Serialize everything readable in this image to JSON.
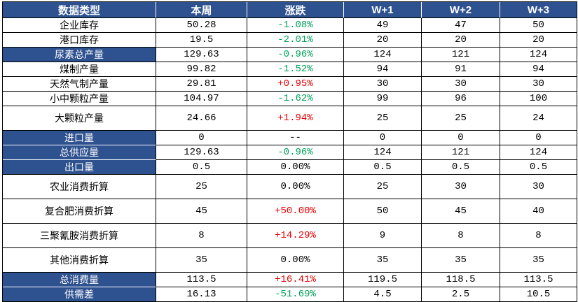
{
  "colors": {
    "header_bg": "#2E518F",
    "highlight_label_bg": "#2E518F",
    "positive_change": "#E60000",
    "negative_change": "#00A05A",
    "neutral_change": "#000000",
    "grid_border": "#000000",
    "blue_cell_separator": "#FFFFFF",
    "body_bg": "#FFFFFF"
  },
  "table": {
    "columns": [
      {
        "label": "数据类型"
      },
      {
        "label": "本周"
      },
      {
        "label": "涨跌"
      },
      {
        "label": "W+1"
      },
      {
        "label": "W+2"
      },
      {
        "label": "W+3"
      }
    ],
    "rows": [
      {
        "label": "企业库存",
        "week": "50.28",
        "change": "-1.08%",
        "change_dir": "down",
        "w1": "49",
        "w2": "47",
        "w3": "50"
      },
      {
        "label": "港口库存",
        "week": "19.5",
        "change": "-2.01%",
        "change_dir": "down",
        "w1": "20",
        "w2": "20",
        "w3": "20"
      },
      {
        "label": "尿素总产量",
        "week": "129.63",
        "change": "-0.96%",
        "change_dir": "down",
        "w1": "124",
        "w2": "121",
        "w3": "124"
      },
      {
        "label": "煤制产量",
        "week": "99.82",
        "change": "-1.52%",
        "change_dir": "down",
        "w1": "94",
        "w2": "91",
        "w3": "94"
      },
      {
        "label": "天然气制产量",
        "week": "29.81",
        "change": "+0.95%",
        "change_dir": "up",
        "w1": "30",
        "w2": "30",
        "w3": "30"
      },
      {
        "label": "小中颗粒产量",
        "week": "104.97",
        "change": "-1.62%",
        "change_dir": "down",
        "w1": "99",
        "w2": "96",
        "w3": "100"
      },
      {
        "label": "大颗粒产量",
        "week": "24.66",
        "change": "+1.94%",
        "change_dir": "up",
        "w1": "25",
        "w2": "25",
        "w3": "24"
      },
      {
        "label": "进口量",
        "week": "0",
        "change": "--",
        "change_dir": "flat",
        "w1": "0",
        "w2": "0",
        "w3": "0"
      },
      {
        "label": "总供应量",
        "week": "129.63",
        "change": "-0.96%",
        "change_dir": "down",
        "w1": "124",
        "w2": "121",
        "w3": "124"
      },
      {
        "label": "出口量",
        "week": "0.5",
        "change": "0.00%",
        "change_dir": "flat",
        "w1": "0.5",
        "w2": "0.5",
        "w3": "0.5"
      },
      {
        "label": "农业消费折算",
        "week": "25",
        "change": "0.00%",
        "change_dir": "flat",
        "w1": "25",
        "w2": "30",
        "w3": "30"
      },
      {
        "label": "复合肥消费折算",
        "week": "45",
        "change": "+50.00%",
        "change_dir": "up",
        "w1": "50",
        "w2": "45",
        "w3": "40"
      },
      {
        "label": "三聚氰胺消费折算",
        "week": "8",
        "change": "+14.29%",
        "change_dir": "up",
        "w1": "9",
        "w2": "8",
        "w3": "8"
      },
      {
        "label": "其他消费折算",
        "week": "35",
        "change": "0.00%",
        "change_dir": "flat",
        "w1": "35",
        "w2": "35",
        "w3": "35"
      },
      {
        "label": "总消费量",
        "week": "113.5",
        "change": "+16.41%",
        "change_dir": "up",
        "w1": "119.5",
        "w2": "118.5",
        "w3": "113.5"
      },
      {
        "label": "供需差",
        "week": "16.13",
        "change": "-51.69%",
        "change_dir": "down",
        "w1": "4.5",
        "w2": "2.5",
        "w3": "10.5"
      }
    ]
  }
}
